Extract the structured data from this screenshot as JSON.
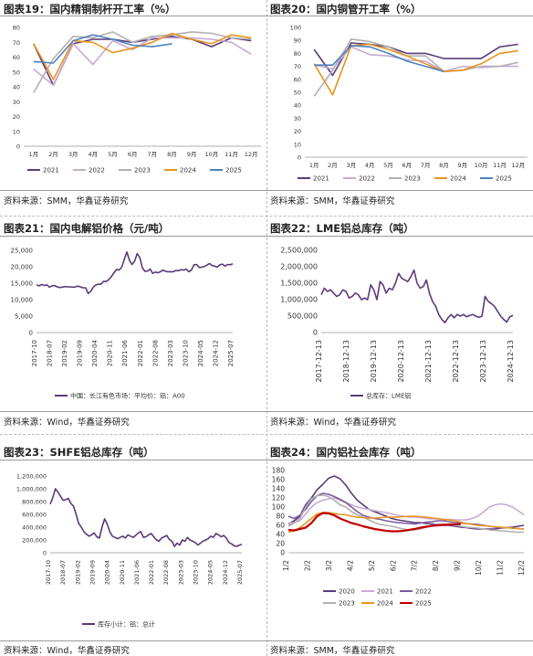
{
  "charts": [
    {
      "title": "图表19：国内精铜制杆开工率（%）",
      "source": "资料来源：SMM，华鑫证券研究",
      "chart_data": {
        "type": "line",
        "categories": [
          "1月",
          "2月",
          "3月",
          "4月",
          "5月",
          "6月",
          "7月",
          "8月",
          "9月",
          "10月",
          "11月",
          "12月"
        ],
        "ylim": [
          0,
          80
        ],
        "yticks": [
          0,
          10,
          20,
          30,
          40,
          50,
          60,
          70,
          80
        ],
        "grid": false,
        "legend": "bottom",
        "series": [
          {
            "name": "2021",
            "color": "#5b3a79",
            "values": [
              69,
              41,
              69,
              72,
              72,
              70,
              72,
              74,
              72,
              67,
              73,
              71
            ]
          },
          {
            "name": "2022",
            "color": "#c8a9d4",
            "values": [
              52,
              41,
              69,
              55,
              71,
              65,
              73,
              73,
              73,
              72,
              70,
              62
            ]
          },
          {
            "name": "2023",
            "color": "#b0b0b0",
            "values": [
              36,
              59,
              74,
              73,
              77,
              70,
              74,
              75,
              77,
              76,
              73,
              72
            ]
          },
          {
            "name": "2024",
            "color": "#e8941a",
            "values": [
              69,
              45,
              71,
              70,
              63,
              66,
              70,
              76,
              72,
              69,
              75,
              73
            ]
          },
          {
            "name": "2025",
            "color": "#4f81bd",
            "values": [
              57,
              56,
              71,
              75,
              72,
              68,
              67,
              69,
              null,
              null,
              null,
              null
            ]
          }
        ]
      }
    },
    {
      "title": "图表20：国内铜管开工率（%）",
      "source": "资料来源：SMM，华鑫证券研究",
      "chart_data": {
        "type": "line",
        "categories": [
          "1月",
          "2月",
          "3月",
          "4月",
          "5月",
          "6月",
          "7月",
          "8月",
          "9月",
          "10月",
          "11月",
          "12月"
        ],
        "ylim": [
          0,
          100
        ],
        "yticks": [
          0,
          10,
          20,
          30,
          40,
          50,
          60,
          70,
          80,
          90,
          100
        ],
        "grid": false,
        "legend": "bottom",
        "series": [
          {
            "name": "2021",
            "color": "#5b3a79",
            "values": [
              83,
              63,
              88,
              87,
              85,
              80,
              80,
              76,
              76,
              76,
              85,
              87
            ]
          },
          {
            "name": "2022",
            "color": "#c8a9d4",
            "values": [
              71,
              68,
              85,
              79,
              78,
              75,
              74,
              66,
              70,
              69,
              70,
              70
            ]
          },
          {
            "name": "2023",
            "color": "#b0b0b0",
            "values": [
              47,
              67,
              91,
              89,
              85,
              78,
              78,
              66,
              67,
              70,
              70,
              73
            ]
          },
          {
            "name": "2024",
            "color": "#e8941a",
            "values": [
              72,
              48,
              86,
              87,
              83,
              78,
              72,
              66,
              67,
              72,
              80,
              82
            ]
          },
          {
            "name": "2025",
            "color": "#4f81bd",
            "values": [
              71,
              71,
              86,
              85,
              80,
              74,
              70,
              66,
              null,
              null,
              null,
              null
            ]
          }
        ]
      }
    },
    {
      "title": "图表21：国内电解铝价格（元/吨）",
      "source": "资料来源：Wind，华鑫证券研究",
      "chart_data": {
        "type": "line",
        "ylim": [
          0,
          25000
        ],
        "yticks": [
          "0",
          "5,000",
          "10,000",
          "15,000",
          "20,000",
          "25,000"
        ],
        "ytick_values": [
          0,
          5000,
          10000,
          15000,
          20000,
          25000
        ],
        "xticks": [
          "2017-10",
          "2018-07",
          "2019-02",
          "2019-09",
          "2020-04",
          "2020-11",
          "2021-06",
          "2022-01",
          "2022-08",
          "2023-03",
          "2023-10",
          "2024-05",
          "2024-12",
          "2025-07"
        ],
        "legend": "bottom",
        "series": [
          {
            "name": "中国：长江有色市场：平均价：铝：A00",
            "color": "#5b3a79",
            "values": [
              14500,
              14200,
              14600,
              14300,
              14500,
              13800,
              14200,
              14300,
              13900,
              13700,
              13800,
              14000,
              13900,
              13900,
              13800,
              13900,
              14100,
              13900,
              13600,
              13600,
              11900,
              12500,
              13800,
              14500,
              14700,
              14700,
              15600,
              15500,
              16100,
              17000,
              18200,
              19200,
              19000,
              19900,
              22300,
              24500,
              22000,
              20700,
              21700,
              24000,
              22800,
              19700,
              18600,
              18700,
              19300,
              18000,
              18400,
              18200,
              18500,
              19000,
              18600,
              18500,
              18500,
              18500,
              18900,
              18800,
              19100,
              19000,
              19300,
              18500,
              19000,
              20600,
              20700,
              19800,
              19900,
              20100,
              20500,
              21000,
              20400,
              20200,
              19900,
              20600,
              20800,
              20200,
              20700,
              20600,
              20900
            ]
          }
        ]
      }
    },
    {
      "title": "图表22：LME铝总库存（吨）",
      "source": "资料来源：Wind，华鑫证券研究",
      "chart_data": {
        "type": "line",
        "ylim": [
          0,
          2500000
        ],
        "yticks": [
          "0",
          "500,000",
          "1,000,000",
          "1,500,000",
          "2,000,000",
          "2,500,000"
        ],
        "ytick_values": [
          0,
          500000,
          1000000,
          1500000,
          2000000,
          2500000
        ],
        "xticks": [
          "2017-12-13",
          "2018-12-13",
          "2019-12-13",
          "2020-12-13",
          "2021-12-13",
          "2022-12-13",
          "2023-12-13",
          "2024-12-13"
        ],
        "legend": "bottom",
        "series": [
          {
            "name": "总库存：LME铝",
            "color": "#5b3a79",
            "values": [
              1150000,
              1350000,
              1250000,
              1300000,
              1200000,
              1100000,
              1150000,
              1300000,
              1250000,
              1050000,
              1100000,
              1200000,
              1150000,
              1000000,
              1050000,
              1000000,
              1450000,
              1300000,
              1000000,
              1550000,
              1450000,
              1200000,
              1350000,
              1300000,
              1500000,
              1800000,
              1650000,
              1600000,
              1550000,
              1700000,
              1900000,
              1500000,
              1350000,
              1400000,
              1600000,
              1200000,
              950000,
              800000,
              550000,
              400000,
              300000,
              450000,
              550000,
              450000,
              550000,
              500000,
              550000,
              480000,
              520000,
              550000,
              500000,
              460000,
              500000,
              1100000,
              950000,
              880000,
              800000,
              650000,
              500000,
              400000,
              320000,
              480000,
              520000
            ]
          }
        ]
      }
    },
    {
      "title": "图表23：SHFE铝总库存（吨）",
      "source": "资料来源：Wind，华鑫证券研究",
      "chart_data": {
        "type": "line",
        "ylim": [
          0,
          1200000
        ],
        "yticks": [
          "0",
          "200,000",
          "400,000",
          "600,000",
          "800,000",
          "1,000,000",
          "1,200,000"
        ],
        "ytick_values": [
          0,
          200000,
          400000,
          600000,
          800000,
          1000000,
          1200000
        ],
        "xticks": [
          "2017-10",
          "2018-07",
          "2019-02",
          "2019-09",
          "2020-04",
          "2020-11",
          "2021-06",
          "2022-01",
          "2022-08",
          "2023-03",
          "2023-10",
          "2024-05",
          "2024-12",
          "2025-07"
        ],
        "legend": "bottom",
        "series": [
          {
            "name": "库存小计：铝：总计",
            "color": "#5b3a79",
            "values": [
              760000,
              860000,
              1000000,
              950000,
              880000,
              820000,
              830000,
              850000,
              770000,
              730000,
              600000,
              460000,
              400000,
              330000,
              290000,
              260000,
              280000,
              310000,
              250000,
              230000,
              400000,
              530000,
              450000,
              330000,
              260000,
              240000,
              220000,
              240000,
              260000,
              230000,
              280000,
              260000,
              240000,
              270000,
              310000,
              330000,
              240000,
              250000,
              280000,
              300000,
              250000,
              200000,
              180000,
              230000,
              250000,
              270000,
              210000,
              180000,
              100000,
              150000,
              120000,
              200000,
              180000,
              240000,
              200000,
              180000,
              160000,
              120000,
              150000,
              180000,
              200000,
              220000,
              260000,
              240000,
              300000,
              280000,
              250000,
              270000,
              230000,
              160000,
              140000,
              110000,
              100000,
              120000,
              130000
            ]
          }
        ]
      }
    },
    {
      "title": "图表24：国内铝社会库存（吨）",
      "source": "资料来源：SMM，华鑫证券研究",
      "chart_data": {
        "type": "line",
        "ylim": [
          0,
          180
        ],
        "yticks": [
          0,
          20,
          40,
          60,
          80,
          100,
          120,
          140,
          160,
          180
        ],
        "xticks": [
          "1/2",
          "2/2",
          "3/2",
          "4/2",
          "5/2",
          "6/2",
          "7/2",
          "8/2",
          "9/2",
          "10/2",
          "11/2",
          "12/2"
        ],
        "legend": "bottom",
        "series": [
          {
            "name": "2020",
            "color": "#5b3a79",
            "values": [
              63,
              70,
              80,
              105,
              120,
              138,
              150,
              163,
              168,
              162,
              148,
              130,
              115,
              105,
              95,
              90,
              85,
              80,
              75,
              72,
              70,
              68,
              66,
              66,
              64,
              63,
              62,
              60,
              60,
              58,
              56,
              55,
              53,
              52,
              52,
              52,
              52,
              54,
              55,
              56,
              58,
              60
            ]
          },
          {
            "name": "2021",
            "color": "#c8a9d4",
            "values": [
              65,
              66,
              70,
              85,
              100,
              110,
              115,
              118,
              120,
              115,
              110,
              105,
              100,
              97,
              95,
              92,
              90,
              88,
              85,
              82,
              80,
              78,
              78,
              77,
              75,
              74,
              74,
              73,
              73,
              72,
              72,
              72,
              75,
              80,
              90,
              100,
              105,
              107,
              105,
              100,
              92,
              83
            ]
          },
          {
            "name": "2022",
            "color": "#7a5a9c",
            "values": [
              80,
              75,
              82,
              95,
              112,
              125,
              130,
              128,
              123,
              117,
              110,
              100,
              90,
              82,
              78,
              75,
              73,
              70,
              68,
              66,
              65,
              64,
              63,
              65,
              67,
              68,
              70,
              70,
              68,
              66,
              65,
              64,
              63,
              62,
              60,
              58,
              56,
              55,
              55,
              54,
              53,
              52
            ]
          },
          {
            "name": "2023",
            "color": "#b0b0b0",
            "values": [
              58,
              65,
              75,
              100,
              118,
              125,
              126,
              123,
              115,
              105,
              100,
              90,
              83,
              78,
              72,
              66,
              62,
              60,
              58,
              55,
              52,
              50,
              50,
              52,
              56,
              60,
              63,
              63,
              62,
              60,
              58,
              56,
              55,
              54,
              52,
              50,
              49,
              48,
              47,
              46,
              45,
              45
            ]
          },
          {
            "name": "2024",
            "color": "#e8941a",
            "values": [
              45,
              48,
              55,
              65,
              75,
              85,
              88,
              88,
              86,
              84,
              83,
              80,
              78,
              77,
              76,
              76,
              77,
              78,
              78,
              78,
              79,
              80,
              80,
              79,
              78,
              76,
              75,
              73,
              72,
              70,
              67,
              64,
              62,
              60,
              59,
              58,
              57,
              56,
              55,
              54,
              53,
              52
            ]
          },
          {
            "name": "2025",
            "color": "#c00000",
            "values": [
              50,
              49,
              52,
              55,
              65,
              80,
              87,
              86,
              82,
              75,
              70,
              65,
              62,
              58,
              55,
              52,
              50,
              48,
              47,
              47,
              48,
              50,
              52,
              55,
              57,
              59,
              60,
              61,
              62,
              62,
              63,
              null,
              null,
              null,
              null,
              null,
              null,
              null,
              null,
              null,
              null,
              null
            ]
          }
        ]
      }
    }
  ]
}
